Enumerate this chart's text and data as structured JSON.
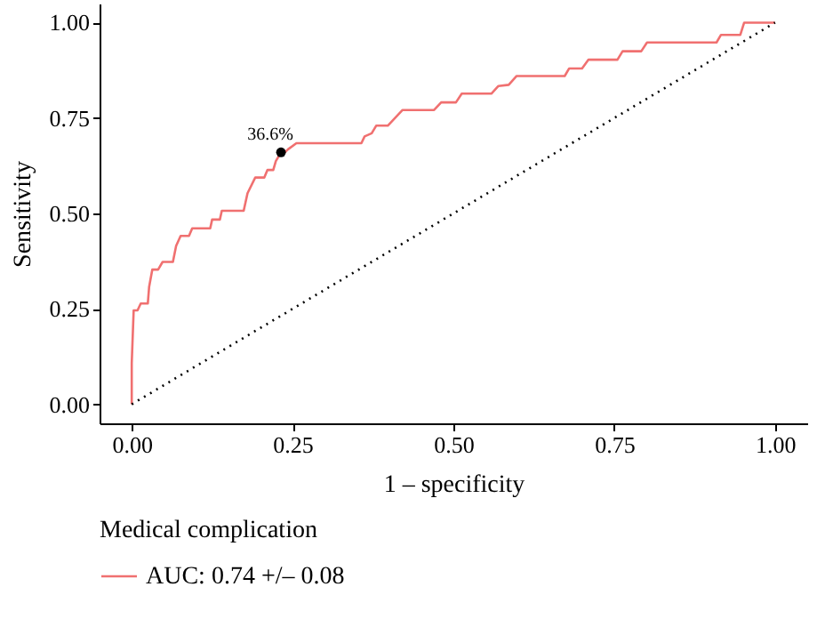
{
  "chart_data": {
    "type": "line",
    "xlabel": "1 – specificity",
    "ylabel": "Sensitivity",
    "legend_title": "Medical complication",
    "legend": "bottom",
    "grid": false,
    "xlim": [
      -0.05,
      1.05
    ],
    "ylim": [
      -0.05,
      1.05
    ],
    "xticks": [
      {
        "value": 0,
        "label": "0.00"
      },
      {
        "value": 0.25,
        "label": "0.25"
      },
      {
        "value": 0.5,
        "label": "0.50"
      },
      {
        "value": 0.75,
        "label": "0.75"
      },
      {
        "value": 1,
        "label": "1.00"
      }
    ],
    "yticks": [
      {
        "value": 0,
        "label": "0.00"
      },
      {
        "value": 0.25,
        "label": "0.25"
      },
      {
        "value": 0.5,
        "label": "0.50"
      },
      {
        "value": 0.75,
        "label": "0.75"
      },
      {
        "value": 1,
        "label": "1.00"
      }
    ],
    "series": [
      {
        "type": "line",
        "name": "AUC: 0.74 +/– 0.08",
        "color": "#f07070",
        "line_style": "solid",
        "x": [
          0,
          0,
          0.003,
          0.009,
          0.014,
          0.025,
          0.027,
          0.032,
          0.041,
          0.048,
          0.064,
          0.069,
          0.076,
          0.089,
          0.094,
          0.122,
          0.125,
          0.137,
          0.14,
          0.174,
          0.18,
          0.192,
          0.206,
          0.211,
          0.22,
          0.224,
          0.232,
          0.238,
          0.243,
          0.256,
          0.357,
          0.362,
          0.373,
          0.38,
          0.398,
          0.421,
          0.47,
          0.481,
          0.504,
          0.513,
          0.559,
          0.57,
          0.586,
          0.598,
          0.673,
          0.68,
          0.7,
          0.71,
          0.755,
          0.763,
          0.792,
          0.801,
          0.909,
          0.916,
          0.946,
          0.952,
          1.0
        ],
        "values": [
          0,
          0.108,
          0.246,
          0.246,
          0.264,
          0.264,
          0.307,
          0.353,
          0.353,
          0.373,
          0.373,
          0.415,
          0.441,
          0.441,
          0.461,
          0.461,
          0.484,
          0.484,
          0.507,
          0.507,
          0.553,
          0.594,
          0.594,
          0.614,
          0.614,
          0.637,
          0.66,
          0.66,
          0.668,
          0.684,
          0.684,
          0.702,
          0.71,
          0.73,
          0.73,
          0.771,
          0.771,
          0.791,
          0.791,
          0.814,
          0.814,
          0.834,
          0.837,
          0.86,
          0.86,
          0.88,
          0.88,
          0.903,
          0.903,
          0.925,
          0.925,
          0.948,
          0.948,
          0.968,
          0.968,
          1.0,
          1.0
        ]
      },
      {
        "type": "line",
        "color": "#000000",
        "line_style": "dotted",
        "x": [
          0,
          1
        ],
        "values": [
          0,
          1
        ]
      },
      {
        "type": "scatter",
        "color": "#000000",
        "marker": "circle",
        "x": [
          0.232
        ],
        "values": [
          0.66
        ]
      }
    ],
    "annotations": [
      {
        "text": "36.6%",
        "x": 0.232,
        "y": 0.66
      }
    ]
  }
}
